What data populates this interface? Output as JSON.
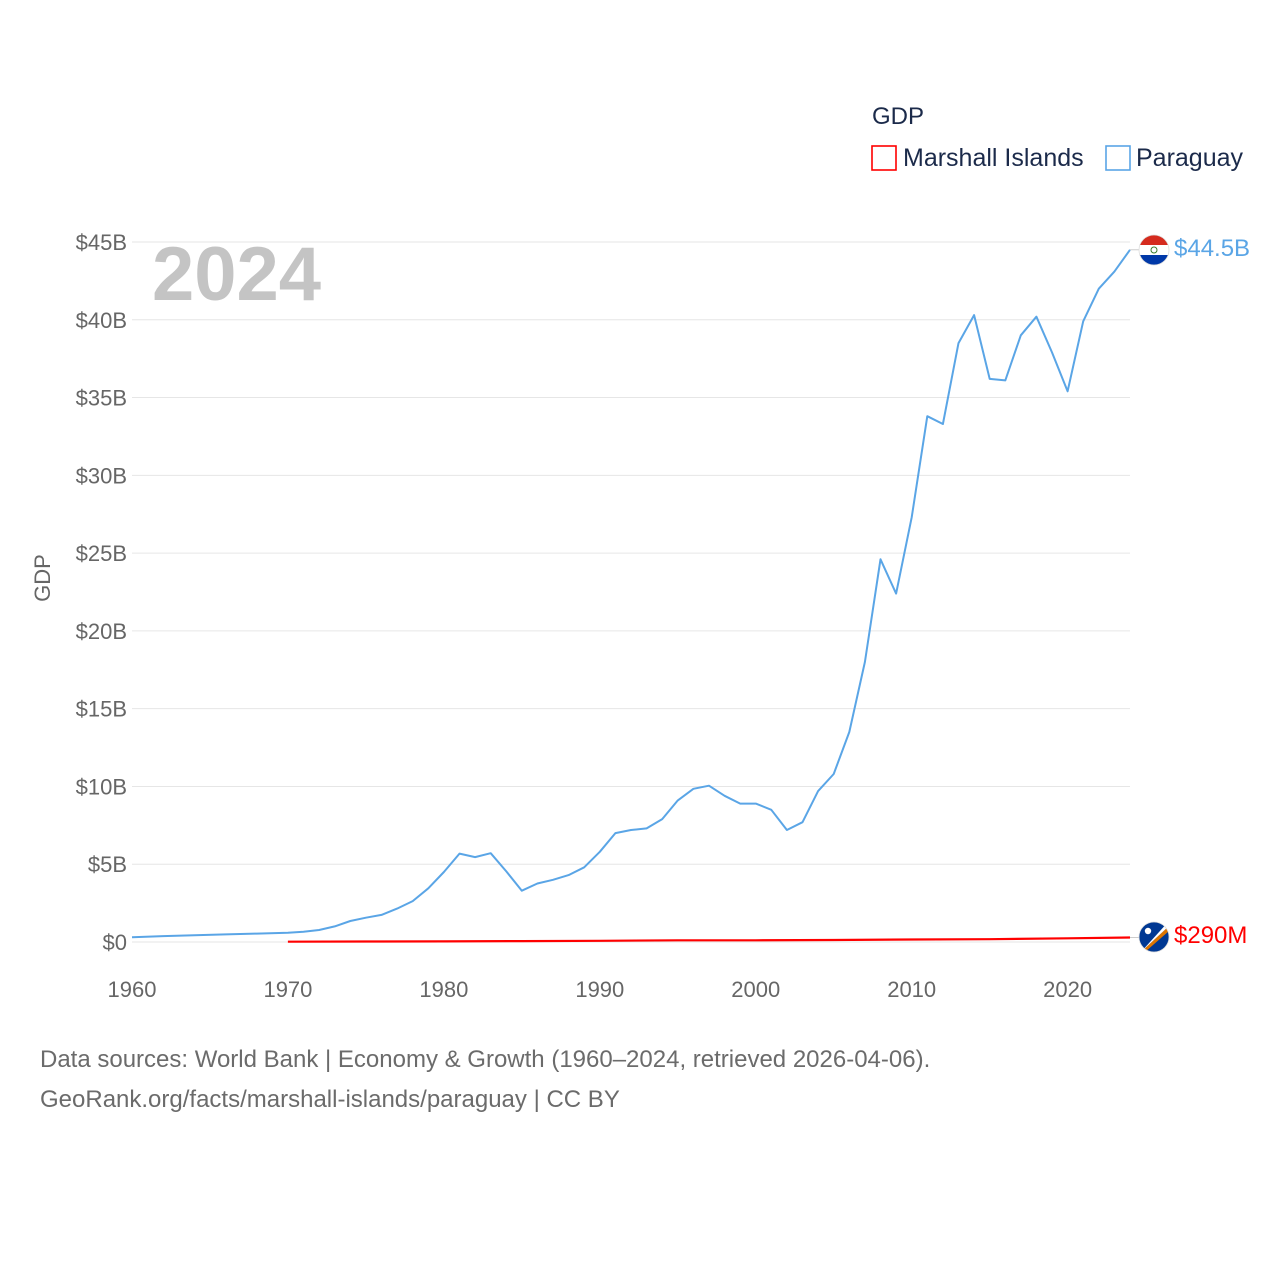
{
  "chart_data": {
    "type": "line",
    "title": "",
    "xlabel": "",
    "ylabel": "GDP",
    "xlim": [
      1960,
      2024
    ],
    "ylim": [
      0,
      45000000000
    ],
    "x_ticks": [
      1960,
      1970,
      1980,
      1990,
      2000,
      2010,
      2020
    ],
    "x_tick_labels": [
      "1960",
      "1970",
      "1980",
      "1990",
      "2000",
      "2010",
      "2020"
    ],
    "y_ticks": [
      0,
      5000000000,
      10000000000,
      15000000000,
      20000000000,
      25000000000,
      30000000000,
      35000000000,
      40000000000,
      45000000000
    ],
    "y_tick_labels": [
      "$0",
      "$5B",
      "$10B",
      "$15B",
      "$20B",
      "$25B",
      "$30B",
      "$35B",
      "$40B",
      "$45B"
    ],
    "grid": true,
    "year_label": "2024",
    "legend": {
      "title": "GDP",
      "placement": "top-right",
      "entries": [
        {
          "name": "Marshall Islands",
          "color": "#ff0000"
        },
        {
          "name": "Paraguay",
          "color": "#5aa5e6"
        }
      ]
    },
    "series": [
      {
        "name": "Paraguay",
        "color": "#5aa5e6",
        "end_label": "$44.5B",
        "flag": "paraguay-flag",
        "x": [
          1960,
          1962,
          1964,
          1966,
          1968,
          1970,
          1971,
          1972,
          1973,
          1974,
          1975,
          1976,
          1977,
          1978,
          1979,
          1980,
          1981,
          1982,
          1983,
          1984,
          1985,
          1986,
          1987,
          1988,
          1989,
          1990,
          1991,
          1992,
          1993,
          1994,
          1995,
          1996,
          1997,
          1998,
          1999,
          2000,
          2001,
          2002,
          2003,
          2004,
          2005,
          2006,
          2007,
          2008,
          2009,
          2010,
          2011,
          2012,
          2013,
          2014,
          2015,
          2016,
          2017,
          2018,
          2019,
          2020,
          2021,
          2022,
          2023,
          2024
        ],
        "values": [
          300000000,
          380000000,
          430000000,
          490000000,
          540000000,
          600000000,
          660000000,
          770000000,
          1000000000,
          1350000000,
          1560000000,
          1740000000,
          2150000000,
          2630000000,
          3450000000,
          4500000000,
          5680000000,
          5460000000,
          5710000000,
          4540000000,
          3300000000,
          3760000000,
          4000000000,
          4300000000,
          4800000000,
          5800000000,
          7000000000,
          7200000000,
          7300000000,
          7900000000,
          9100000000,
          9850000000,
          10050000000,
          9400000000,
          8900000000,
          8900000000,
          8500000000,
          7200000000,
          7700000000,
          9700000000,
          10800000000,
          13500000000,
          18000000000,
          24600000000,
          22400000000,
          27300000000,
          33800000000,
          33300000000,
          38500000000,
          40300000000,
          36200000000,
          36100000000,
          39000000000,
          40200000000,
          37900000000,
          35400000000,
          39900000000,
          42000000000,
          43100000000,
          44500000000
        ]
      },
      {
        "name": "Marshall Islands",
        "color": "#ff0000",
        "end_label": "$290M",
        "flag": "marshall-islands-flag",
        "x": [
          1970,
          1975,
          1980,
          1985,
          1990,
          1995,
          2000,
          2005,
          2010,
          2015,
          2020,
          2024
        ],
        "values": [
          20000000,
          30000000,
          40000000,
          60000000,
          80000000,
          110000000,
          110000000,
          130000000,
          160000000,
          180000000,
          240000000,
          290000000
        ]
      }
    ]
  },
  "footer": {
    "line1": "Data sources: World Bank | Economy & Growth (1960–2024, retrieved 2026-04-06).",
    "line2": "GeoRank.org/facts/marshall-islands/paraguay | CC BY"
  }
}
